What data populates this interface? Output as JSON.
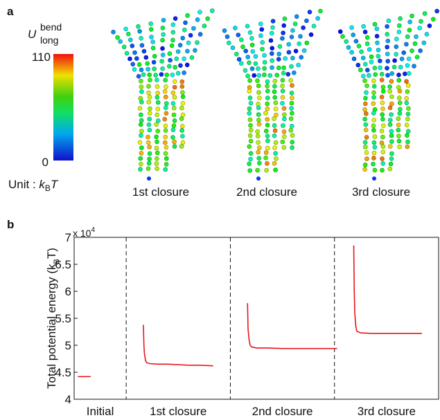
{
  "panel_a": {
    "label": "a",
    "colorbar": {
      "symbol": "U",
      "superscript": "bend",
      "subscript": "long",
      "max": 110,
      "min": 0,
      "unit_prefix": "Unit : ",
      "unit_symbol": "k",
      "unit_subscript": "B",
      "unit_suffix": "T"
    },
    "structure_labels": [
      "1st closure",
      "2nd closure",
      "3rd closure"
    ]
  },
  "chart_data": {
    "type": "line",
    "panel_label": "b",
    "ylabel_parts": [
      "Total potential energy (k",
      "B",
      "T)"
    ],
    "y_multiplier": "x 10",
    "y_multiplier_exponent": "4",
    "xlim": [
      0,
      7
    ],
    "ylim": [
      4,
      7
    ],
    "yticks": [
      4,
      4.5,
      5,
      5.5,
      6,
      6.5,
      7
    ],
    "xticks": [
      {
        "value": 0.5,
        "label": "Initial"
      },
      {
        "value": 2,
        "label": "1st closure"
      },
      {
        "value": 4,
        "label": "2nd closure"
      },
      {
        "value": 6,
        "label": "3rd closure"
      }
    ],
    "dividers": [
      1,
      3,
      5
    ],
    "series": [
      {
        "color": "#e8141b",
        "x": [
          0.07,
          0.32,
          null,
          1.33,
          1.335,
          1.34,
          1.35,
          1.37,
          1.39,
          1.45,
          1.6,
          1.8,
          2.0,
          2.2,
          2.4,
          2.67,
          null,
          3.33,
          3.335,
          3.34,
          3.36,
          3.38,
          3.41,
          3.5,
          3.7,
          4.0,
          4.3,
          4.6,
          5.05,
          null,
          5.37,
          5.375,
          5.38,
          5.39,
          5.41,
          5.43,
          5.5,
          5.7,
          6.0,
          6.3,
          6.68
        ],
        "values": [
          4.42,
          4.42,
          null,
          5.38,
          5.2,
          5.0,
          4.85,
          4.72,
          4.68,
          4.66,
          4.65,
          4.65,
          4.64,
          4.63,
          4.63,
          4.62,
          null,
          5.78,
          5.55,
          5.3,
          5.1,
          5.0,
          4.97,
          4.95,
          4.95,
          4.94,
          4.94,
          4.94,
          4.94,
          null,
          6.85,
          6.4,
          6.0,
          5.6,
          5.35,
          5.26,
          5.23,
          5.22,
          5.22,
          5.22,
          5.22
        ]
      }
    ]
  }
}
